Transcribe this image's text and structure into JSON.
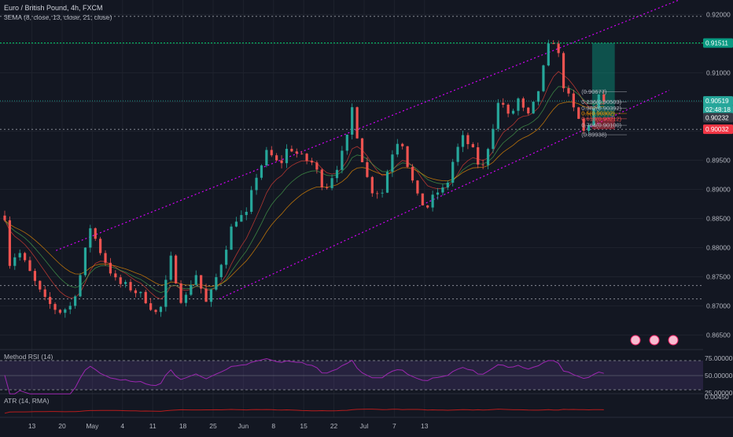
{
  "header": {
    "symbol_title": "Euro / British Pound, 4h, FXCM",
    "indicator_label": "3EMA (8, close, 13, close, 21, close)"
  },
  "rsi_panel": {
    "label": "Method RSI (14)",
    "ticks": [
      "75.00000",
      "50.00000",
      "25.00000"
    ],
    "upper": 75,
    "lower": 25,
    "mid": 50
  },
  "atr_panel": {
    "label": "ATR (14, RMA)",
    "tick": "0.00450"
  },
  "badges": [
    {
      "text": "0.91511",
      "color": "#089981"
    },
    {
      "text": "0.90519",
      "color": "#26a69a"
    },
    {
      "text": "02:48:18",
      "color": "#26a69a"
    },
    {
      "text": "0.90232",
      "color": "#363a45"
    },
    {
      "text": "0.90032",
      "color": "#f23645"
    }
  ],
  "fib_labels": [
    "(0.90677)",
    "0.236(0.90503)",
    "0.382(0.90392)",
    "0.5(0.90302)",
    "0.618(0.90212)",
    "0.764(0.90100)",
    "(0.89938)"
  ],
  "colors": {
    "up": "#26a69a",
    "down": "#ef5350",
    "channel": "#d500f9",
    "level_green": "#00e676",
    "rsi": "#9c27b0"
  },
  "chart_data": {
    "type": "candlestick",
    "title": "Euro / British Pound, 4h, FXCM",
    "x_ticks": [
      "13",
      "20",
      "May",
      "4",
      "11",
      "18",
      "25",
      "Jun",
      "8",
      "15",
      "22",
      "Jul",
      "7",
      "13"
    ],
    "y_ticks": [
      "0.92000",
      "0.91500",
      "0.91000",
      "0.90500",
      "0.90000",
      "0.89500",
      "0.89000",
      "0.88500",
      "0.88000",
      "0.87500",
      "0.87000",
      "0.86500"
    ],
    "ylim": [
      0.8625,
      0.9225
    ],
    "price_path": [
      {
        "x": 0.0,
        "p": 0.8855
      },
      {
        "x": 0.15,
        "p": 0.8772
      },
      {
        "x": 0.45,
        "p": 0.8795
      },
      {
        "x": 1.3,
        "p": 0.871
      },
      {
        "x": 1.8,
        "p": 0.869
      },
      {
        "x": 2.2,
        "p": 0.87
      },
      {
        "x": 2.6,
        "p": 0.877
      },
      {
        "x": 2.8,
        "p": 0.884
      },
      {
        "x": 3.2,
        "p": 0.879
      },
      {
        "x": 3.7,
        "p": 0.874
      },
      {
        "x": 4.2,
        "p": 0.873
      },
      {
        "x": 4.7,
        "p": 0.871
      },
      {
        "x": 5.1,
        "p": 0.868
      },
      {
        "x": 5.5,
        "p": 0.878
      },
      {
        "x": 5.9,
        "p": 0.87
      },
      {
        "x": 6.3,
        "p": 0.876
      },
      {
        "x": 6.7,
        "p": 0.87
      },
      {
        "x": 7.2,
        "p": 0.878
      },
      {
        "x": 7.6,
        "p": 0.885
      },
      {
        "x": 8.0,
        "p": 0.8855
      },
      {
        "x": 8.3,
        "p": 0.892
      },
      {
        "x": 8.7,
        "p": 0.8965
      },
      {
        "x": 9.1,
        "p": 0.894
      },
      {
        "x": 9.4,
        "p": 0.8975
      },
      {
        "x": 9.8,
        "p": 0.8955
      },
      {
        "x": 10.2,
        "p": 0.8945
      },
      {
        "x": 10.6,
        "p": 0.89
      },
      {
        "x": 11.0,
        "p": 0.894
      },
      {
        "x": 11.3,
        "p": 0.8975
      },
      {
        "x": 11.5,
        "p": 0.904
      },
      {
        "x": 11.8,
        "p": 0.896
      },
      {
        "x": 12.1,
        "p": 0.89
      },
      {
        "x": 12.5,
        "p": 0.8895
      },
      {
        "x": 12.8,
        "p": 0.896
      },
      {
        "x": 13.1,
        "p": 0.8995
      },
      {
        "x": 13.4,
        "p": 0.893
      },
      {
        "x": 13.7,
        "p": 0.888
      },
      {
        "x": 14.0,
        "p": 0.887
      },
      {
        "x": 14.3,
        "p": 0.8895
      },
      {
        "x": 14.6,
        "p": 0.89
      },
      {
        "x": 14.9,
        "p": 0.896
      },
      {
        "x": 15.2,
        "p": 0.899
      },
      {
        "x": 15.5,
        "p": 0.8965
      },
      {
        "x": 15.8,
        "p": 0.893
      },
      {
        "x": 16.1,
        "p": 0.8995
      },
      {
        "x": 16.4,
        "p": 0.906
      },
      {
        "x": 16.7,
        "p": 0.902
      },
      {
        "x": 17.0,
        "p": 0.9055
      },
      {
        "x": 17.3,
        "p": 0.902
      },
      {
        "x": 17.6,
        "p": 0.9055
      },
      {
        "x": 17.9,
        "p": 0.912
      },
      {
        "x": 18.1,
        "p": 0.9165
      },
      {
        "x": 18.3,
        "p": 0.914
      },
      {
        "x": 18.5,
        "p": 0.908
      },
      {
        "x": 18.8,
        "p": 0.904
      },
      {
        "x": 19.0,
        "p": 0.902
      },
      {
        "x": 19.2,
        "p": 0.8995
      },
      {
        "x": 19.45,
        "p": 0.903
      },
      {
        "x": 19.7,
        "p": 0.906
      },
      {
        "x": 19.85,
        "p": 0.9052
      }
    ],
    "levels": [
      {
        "price": 0.9197,
        "kind": "dotted"
      },
      {
        "price": 0.91511,
        "kind": "green"
      },
      {
        "price": 0.90519,
        "kind": "last"
      },
      {
        "price": 0.9003,
        "kind": "dotted"
      },
      {
        "price": 0.8735,
        "kind": "dotted"
      },
      {
        "price": 0.8712,
        "kind": "dotted"
      }
    ],
    "channel_lines": [
      {
        "from": {
          "x": 1.7,
          "p": 0.8795
        },
        "to": {
          "x": 24.0,
          "p": 0.926
        }
      },
      {
        "from": {
          "x": 7.1,
          "p": 0.8712
        },
        "to": {
          "x": 22.0,
          "p": 0.907
        }
      }
    ],
    "fib_levels": [
      0.90677,
      0.90503,
      0.90392,
      0.90302,
      0.90212,
      0.901,
      0.89938
    ],
    "position": {
      "entry": 0.90232,
      "target": 0.91511,
      "stop": 0.90032,
      "x_start": 19.45,
      "x_end": 20.2
    }
  }
}
